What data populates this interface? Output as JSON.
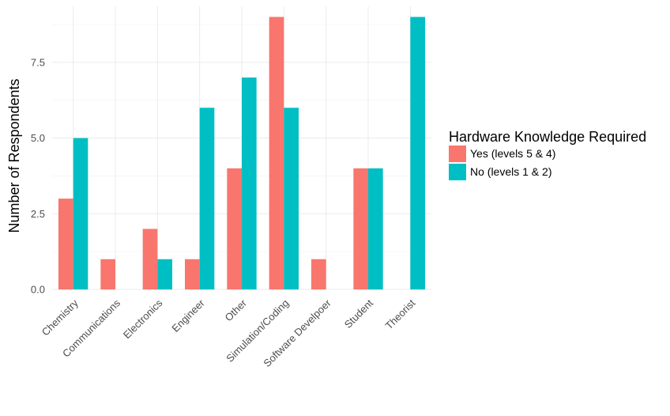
{
  "chart_data": {
    "type": "bar",
    "ylabel": "Number of Respondents",
    "ylim": [
      0,
      9
    ],
    "yticks": [
      "0.0",
      "2.5",
      "5.0",
      "7.5"
    ],
    "categories": [
      "Chemistry",
      "Communications",
      "Electronics",
      "Engineer",
      "Other",
      "Simulation/Coding",
      "Software Develpoer",
      "Student",
      "Theorist"
    ],
    "series": [
      {
        "name": "Yes (levels 5 & 4)",
        "color": "#F8766D",
        "values": [
          3,
          1,
          2,
          1,
          4,
          9,
          1,
          4,
          0
        ]
      },
      {
        "name": "No (levels 1 & 2)",
        "color": "#00BFC4",
        "values": [
          5,
          0,
          1,
          6,
          7,
          6,
          0,
          4,
          9
        ]
      }
    ],
    "legend": {
      "title": "Hardware Knowledge Required",
      "position": "right"
    },
    "grid": true
  }
}
